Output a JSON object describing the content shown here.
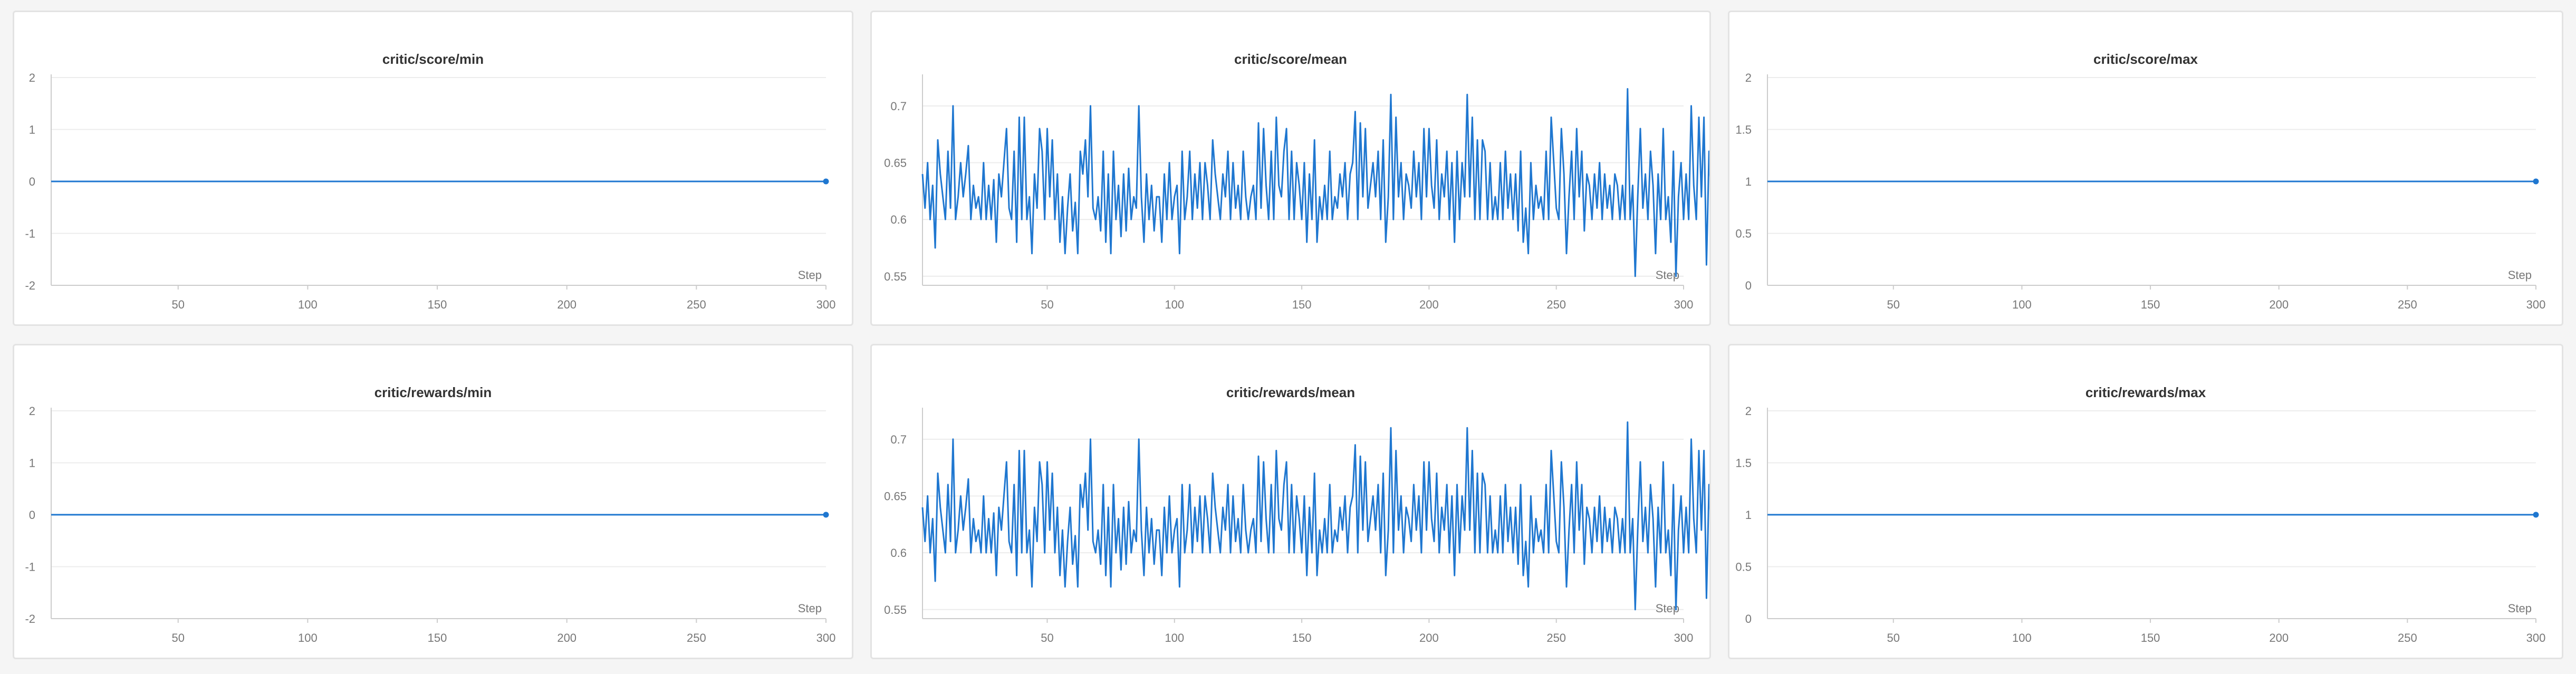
{
  "colors": {
    "line": "#1f77d0",
    "grid": "#ececec",
    "axis": "#cccccc",
    "tick_text": "#777777"
  },
  "chart_data": [
    {
      "type": "line",
      "title": "critic/score/min",
      "xlabel": "Step",
      "xlim": [
        1,
        300
      ],
      "ylim": [
        -2,
        2
      ],
      "xticks": [
        50,
        100,
        150,
        200,
        250,
        300
      ],
      "yticks": [
        -2,
        -1,
        0,
        1,
        2
      ],
      "ytick_labels": [
        "-2",
        "-1",
        "0",
        "1",
        "2"
      ],
      "series": [
        {
          "x": [
            1,
            300
          ],
          "y": [
            0,
            0
          ]
        }
      ]
    },
    {
      "type": "line",
      "title": "critic/score/mean",
      "xlabel": "Step",
      "xlim": [
        1,
        300
      ],
      "ylim": [
        0.542,
        0.725
      ],
      "xticks": [
        50,
        100,
        150,
        200,
        250,
        300
      ],
      "yticks": [
        0.55,
        0.6,
        0.65,
        0.7
      ],
      "ytick_labels": [
        "0.55",
        "0.6",
        "0.65",
        "0.7"
      ],
      "series": [
        {
          "y": [
            0.64,
            0.61,
            0.65,
            0.6,
            0.63,
            0.575,
            0.67,
            0.64,
            0.62,
            0.6,
            0.66,
            0.61,
            0.7,
            0.6,
            0.62,
            0.65,
            0.62,
            0.64,
            0.665,
            0.6,
            0.63,
            0.61,
            0.62,
            0.6,
            0.65,
            0.6,
            0.63,
            0.6,
            0.635,
            0.58,
            0.64,
            0.62,
            0.65,
            0.68,
            0.61,
            0.6,
            0.66,
            0.58,
            0.69,
            0.6,
            0.69,
            0.6,
            0.62,
            0.57,
            0.64,
            0.61,
            0.68,
            0.66,
            0.6,
            0.68,
            0.62,
            0.67,
            0.6,
            0.64,
            0.58,
            0.62,
            0.57,
            0.61,
            0.64,
            0.59,
            0.615,
            0.57,
            0.66,
            0.64,
            0.67,
            0.62,
            0.7,
            0.61,
            0.6,
            0.62,
            0.59,
            0.66,
            0.58,
            0.64,
            0.57,
            0.66,
            0.6,
            0.63,
            0.585,
            0.64,
            0.59,
            0.645,
            0.6,
            0.62,
            0.61,
            0.7,
            0.62,
            0.58,
            0.64,
            0.6,
            0.63,
            0.59,
            0.62,
            0.62,
            0.58,
            0.64,
            0.6,
            0.65,
            0.6,
            0.62,
            0.63,
            0.57,
            0.66,
            0.6,
            0.62,
            0.66,
            0.6,
            0.64,
            0.61,
            0.65,
            0.6,
            0.65,
            0.63,
            0.6,
            0.67,
            0.64,
            0.62,
            0.6,
            0.64,
            0.62,
            0.66,
            0.6,
            0.65,
            0.61,
            0.63,
            0.6,
            0.66,
            0.62,
            0.6,
            0.62,
            0.63,
            0.6,
            0.685,
            0.61,
            0.68,
            0.63,
            0.6,
            0.66,
            0.6,
            0.69,
            0.63,
            0.62,
            0.66,
            0.68,
            0.6,
            0.66,
            0.6,
            0.65,
            0.63,
            0.6,
            0.65,
            0.58,
            0.64,
            0.6,
            0.67,
            0.58,
            0.62,
            0.6,
            0.63,
            0.6,
            0.66,
            0.6,
            0.62,
            0.61,
            0.64,
            0.62,
            0.65,
            0.6,
            0.64,
            0.65,
            0.695,
            0.6,
            0.685,
            0.62,
            0.68,
            0.61,
            0.63,
            0.65,
            0.62,
            0.66,
            0.6,
            0.67,
            0.58,
            0.62,
            0.71,
            0.6,
            0.69,
            0.62,
            0.65,
            0.6,
            0.64,
            0.63,
            0.61,
            0.66,
            0.62,
            0.65,
            0.6,
            0.68,
            0.62,
            0.68,
            0.63,
            0.61,
            0.67,
            0.6,
            0.64,
            0.62,
            0.66,
            0.6,
            0.65,
            0.58,
            0.66,
            0.6,
            0.65,
            0.62,
            0.71,
            0.62,
            0.69,
            0.6,
            0.67,
            0.6,
            0.67,
            0.66,
            0.6,
            0.65,
            0.6,
            0.62,
            0.6,
            0.65,
            0.6,
            0.66,
            0.61,
            0.64,
            0.6,
            0.64,
            0.59,
            0.66,
            0.58,
            0.61,
            0.57,
            0.65,
            0.6,
            0.63,
            0.61,
            0.62,
            0.6,
            0.66,
            0.6,
            0.69,
            0.65,
            0.61,
            0.6,
            0.68,
            0.64,
            0.57,
            0.62,
            0.66,
            0.6,
            0.68,
            0.62,
            0.66,
            0.59,
            0.64,
            0.63,
            0.6,
            0.64,
            0.61,
            0.65,
            0.6,
            0.64,
            0.61,
            0.63,
            0.6,
            0.64,
            0.63,
            0.6,
            0.63,
            0.6,
            0.715,
            0.6,
            0.63,
            0.55,
            0.62,
            0.68,
            0.61,
            0.64,
            0.6,
            0.66,
            0.63,
            0.57,
            0.64,
            0.6,
            0.68,
            0.6,
            0.62,
            0.58,
            0.66,
            0.55,
            0.62,
            0.65,
            0.6,
            0.64,
            0.6,
            0.7,
            0.63,
            0.6,
            0.69,
            0.62,
            0.69,
            0.56,
            0.66,
            0.61,
            0.64,
            0.6,
            0.67,
            0.62,
            0.66,
            0.55,
            0.64,
            0.6,
            0.65,
            0.6,
            0.63,
            0.57,
            0.67,
            0.6,
            0.68,
            0.62,
            0.7,
            0.6,
            0.72,
            0.54,
            0.66,
            0.6,
            0.62,
            0.57,
            0.59,
            0.6,
            0.67,
            0.63,
            0.6,
            0.67,
            0.62,
            0.66,
            0.6,
            0.65,
            0.65,
            0.56,
            0.64,
            0.61,
            0.66,
            0.6,
            0.665,
            0.6,
            0.661
          ]
        }
      ]
    },
    {
      "type": "line",
      "title": "critic/score/max",
      "xlabel": "Step",
      "xlim": [
        1,
        300
      ],
      "ylim": [
        0,
        2
      ],
      "xticks": [
        50,
        100,
        150,
        200,
        250,
        300
      ],
      "yticks": [
        0,
        0.5,
        1,
        1.5,
        2
      ],
      "ytick_labels": [
        "0",
        "0.5",
        "1",
        "1.5",
        "2"
      ],
      "series": [
        {
          "x": [
            1,
            300
          ],
          "y": [
            1,
            1
          ]
        }
      ]
    },
    {
      "type": "line",
      "title": "critic/rewards/min",
      "xlabel": "Step",
      "xlim": [
        1,
        300
      ],
      "ylim": [
        -2,
        2
      ],
      "xticks": [
        50,
        100,
        150,
        200,
        250,
        300
      ],
      "yticks": [
        -2,
        -1,
        0,
        1,
        2
      ],
      "ytick_labels": [
        "-2",
        "-1",
        "0",
        "1",
        "2"
      ],
      "series": [
        {
          "x": [
            1,
            300
          ],
          "y": [
            0,
            0
          ]
        }
      ]
    },
    {
      "type": "line",
      "title": "critic/rewards/mean",
      "xlabel": "Step",
      "xlim": [
        1,
        300
      ],
      "ylim": [
        0.542,
        0.725
      ],
      "xticks": [
        50,
        100,
        150,
        200,
        250,
        300
      ],
      "yticks": [
        0.55,
        0.6,
        0.65,
        0.7
      ],
      "ytick_labels": [
        "0.55",
        "0.6",
        "0.65",
        "0.7"
      ],
      "series": [
        {
          "y": [
            0.64,
            0.61,
            0.65,
            0.6,
            0.63,
            0.575,
            0.67,
            0.64,
            0.62,
            0.6,
            0.66,
            0.61,
            0.7,
            0.6,
            0.62,
            0.65,
            0.62,
            0.64,
            0.665,
            0.6,
            0.63,
            0.61,
            0.62,
            0.6,
            0.65,
            0.6,
            0.63,
            0.6,
            0.635,
            0.58,
            0.64,
            0.62,
            0.65,
            0.68,
            0.61,
            0.6,
            0.66,
            0.58,
            0.69,
            0.6,
            0.69,
            0.6,
            0.62,
            0.57,
            0.64,
            0.61,
            0.68,
            0.66,
            0.6,
            0.68,
            0.62,
            0.67,
            0.6,
            0.64,
            0.58,
            0.62,
            0.57,
            0.61,
            0.64,
            0.59,
            0.615,
            0.57,
            0.66,
            0.64,
            0.67,
            0.62,
            0.7,
            0.61,
            0.6,
            0.62,
            0.59,
            0.66,
            0.58,
            0.64,
            0.57,
            0.66,
            0.6,
            0.63,
            0.585,
            0.64,
            0.59,
            0.645,
            0.6,
            0.62,
            0.61,
            0.7,
            0.62,
            0.58,
            0.64,
            0.6,
            0.63,
            0.59,
            0.62,
            0.62,
            0.58,
            0.64,
            0.6,
            0.65,
            0.6,
            0.62,
            0.63,
            0.57,
            0.66,
            0.6,
            0.62,
            0.66,
            0.6,
            0.64,
            0.61,
            0.65,
            0.6,
            0.65,
            0.63,
            0.6,
            0.67,
            0.64,
            0.62,
            0.6,
            0.64,
            0.62,
            0.66,
            0.6,
            0.65,
            0.61,
            0.63,
            0.6,
            0.66,
            0.62,
            0.6,
            0.62,
            0.63,
            0.6,
            0.685,
            0.61,
            0.68,
            0.63,
            0.6,
            0.66,
            0.6,
            0.69,
            0.63,
            0.62,
            0.66,
            0.68,
            0.6,
            0.66,
            0.6,
            0.65,
            0.63,
            0.6,
            0.65,
            0.58,
            0.64,
            0.6,
            0.67,
            0.58,
            0.62,
            0.6,
            0.63,
            0.6,
            0.66,
            0.6,
            0.62,
            0.61,
            0.64,
            0.62,
            0.65,
            0.6,
            0.64,
            0.65,
            0.695,
            0.6,
            0.685,
            0.62,
            0.68,
            0.61,
            0.63,
            0.65,
            0.62,
            0.66,
            0.6,
            0.67,
            0.58,
            0.62,
            0.71,
            0.6,
            0.69,
            0.62,
            0.65,
            0.6,
            0.64,
            0.63,
            0.61,
            0.66,
            0.62,
            0.65,
            0.6,
            0.68,
            0.62,
            0.68,
            0.63,
            0.61,
            0.67,
            0.6,
            0.64,
            0.62,
            0.66,
            0.6,
            0.65,
            0.58,
            0.66,
            0.6,
            0.65,
            0.62,
            0.71,
            0.62,
            0.69,
            0.6,
            0.67,
            0.6,
            0.67,
            0.66,
            0.6,
            0.65,
            0.6,
            0.62,
            0.6,
            0.65,
            0.6,
            0.66,
            0.61,
            0.64,
            0.6,
            0.64,
            0.59,
            0.66,
            0.58,
            0.61,
            0.57,
            0.65,
            0.6,
            0.63,
            0.61,
            0.62,
            0.6,
            0.66,
            0.6,
            0.69,
            0.65,
            0.61,
            0.6,
            0.68,
            0.64,
            0.57,
            0.62,
            0.66,
            0.6,
            0.68,
            0.62,
            0.66,
            0.59,
            0.64,
            0.63,
            0.6,
            0.64,
            0.61,
            0.65,
            0.6,
            0.64,
            0.61,
            0.63,
            0.6,
            0.64,
            0.63,
            0.6,
            0.63,
            0.6,
            0.715,
            0.6,
            0.63,
            0.55,
            0.62,
            0.68,
            0.61,
            0.64,
            0.6,
            0.66,
            0.63,
            0.57,
            0.64,
            0.6,
            0.68,
            0.6,
            0.62,
            0.58,
            0.66,
            0.55,
            0.62,
            0.65,
            0.6,
            0.64,
            0.6,
            0.7,
            0.63,
            0.6,
            0.69,
            0.62,
            0.69,
            0.56,
            0.66,
            0.61,
            0.64,
            0.6,
            0.67,
            0.62,
            0.66,
            0.55,
            0.64,
            0.6,
            0.65,
            0.6,
            0.63,
            0.57,
            0.67,
            0.6,
            0.68,
            0.62,
            0.7,
            0.6,
            0.72,
            0.54,
            0.66,
            0.6,
            0.62,
            0.57,
            0.59,
            0.6,
            0.67,
            0.63,
            0.6,
            0.67,
            0.62,
            0.66,
            0.6,
            0.65,
            0.65,
            0.56,
            0.64,
            0.61,
            0.66,
            0.6,
            0.665,
            0.6,
            0.661
          ]
        }
      ]
    },
    {
      "type": "line",
      "title": "critic/rewards/max",
      "xlabel": "Step",
      "xlim": [
        1,
        300
      ],
      "ylim": [
        0,
        2
      ],
      "xticks": [
        50,
        100,
        150,
        200,
        250,
        300
      ],
      "yticks": [
        0,
        0.5,
        1,
        1.5,
        2
      ],
      "ytick_labels": [
        "0",
        "0.5",
        "1",
        "1.5",
        "2"
      ],
      "series": [
        {
          "x": [
            1,
            300
          ],
          "y": [
            1,
            1
          ]
        }
      ]
    }
  ]
}
